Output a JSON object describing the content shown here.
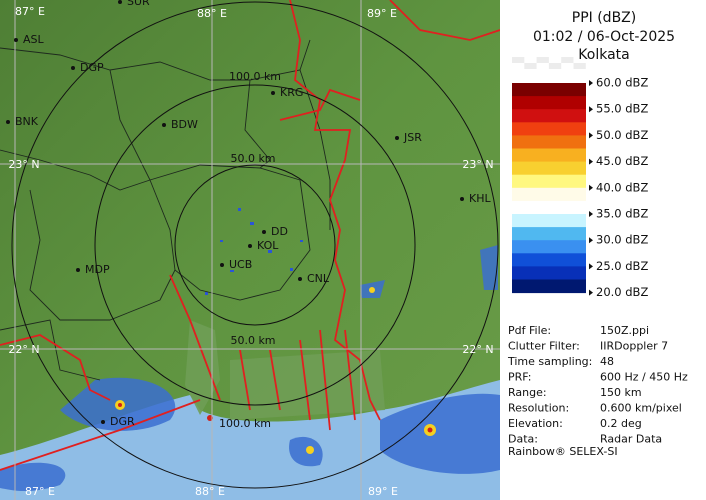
{
  "panel": {
    "title": "PPI (dBZ)",
    "time": "01:02 / 06-Oct-2025",
    "site": "Kolkata",
    "legend": [
      "60.0 dBZ",
      "55.0 dBZ",
      "50.0 dBZ",
      "45.0 dBZ",
      "40.0 dBZ",
      "35.0 dBZ",
      "30.0 dBZ",
      "25.0 dBZ",
      "20.0 dBZ"
    ],
    "info": [
      [
        "Pdf File:",
        "150Z.ppi"
      ],
      [
        "Clutter Filter:",
        "IIRDoppler 7"
      ],
      [
        "Time sampling:",
        "48"
      ],
      [
        "PRF:",
        "600 Hz / 450 Hz"
      ],
      [
        "Range:",
        "150 km"
      ],
      [
        "Resolution:",
        "0.600 km/pixel"
      ],
      [
        "Elevation:",
        "0.2 deg"
      ],
      [
        "Data:",
        "Radar Data"
      ]
    ],
    "footer": "Rainbow® SELEX-SI"
  },
  "map": {
    "grid_labels": [
      "87° E",
      "88° E",
      "89° E",
      "23° N",
      "22° N",
      "23° N",
      "22° N",
      "87° E",
      "88° E",
      "89° E"
    ],
    "rings": [
      "100.0 km",
      "50.0 km",
      "50.0 km",
      "100.0 km"
    ],
    "cities": [
      "ASL",
      "DGP",
      "KRG",
      "BDW",
      "BNK",
      "JSR",
      "KHL",
      "MDP",
      "DD",
      "KOL",
      "UCB",
      "CNL",
      "DGR",
      "SUR"
    ]
  }
}
